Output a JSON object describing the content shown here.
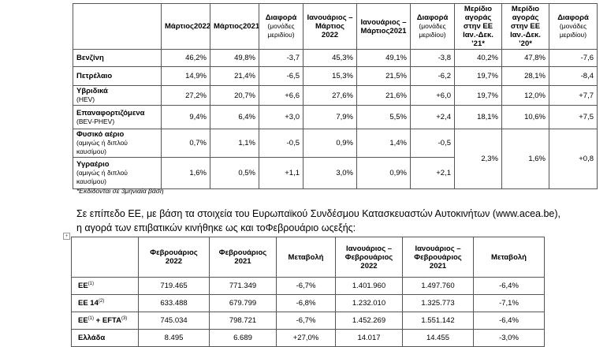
{
  "table1": {
    "header": [
      {
        "bold": "Μάρτιος2022"
      },
      {
        "bold": "Μάρτιος2021"
      },
      {
        "bold": "Διαφορά",
        "note": "(μονάδες μεριδίου)"
      },
      {
        "bold": "Ιανουάριος – Μάρτιος 2022"
      },
      {
        "bold": "Ιανουάριος – Μάρτιος2021"
      },
      {
        "bold": "Διαφορά",
        "note": "(μονάδες μεριδίου)"
      },
      {
        "bold": "Μερίδιο αγοράς στην ΕΕ Ιαν.-Δεκ. ’21*"
      },
      {
        "bold": "Μερίδιο αγοράς στην ΕΕ Ιαν.-Δεκ. ’20*"
      },
      {
        "bold": "Διαφορά",
        "note": "(μονάδες μεριδίου)"
      }
    ],
    "rows": [
      {
        "label": {
          "bold": "Βενζίνη"
        },
        "cells": [
          "46,2%",
          "49,8%",
          "-3,7",
          "45,3%",
          "49,1%",
          "-3,8",
          "40,2%",
          "47,8%",
          "-7,6"
        ]
      },
      {
        "label": {
          "bold": "Πετρέλαιο"
        },
        "cells": [
          "14,9%",
          "21,4%",
          "-6,5",
          "15,3%",
          "21,5%",
          "-6,2",
          "19,7%",
          "28,1%",
          "-8,4"
        ]
      },
      {
        "label": {
          "bold": "Υβριδικά",
          "note": "(HEV)"
        },
        "cells": [
          "27,2%",
          "20,7%",
          "+6,6",
          "27,6%",
          "21,6%",
          "+6,0",
          "19,7%",
          "12,0%",
          "+7,7"
        ]
      },
      {
        "label": {
          "bold": "Επαναφορτιζόμενα",
          "note": "(BEV-PHEV)"
        },
        "cells": [
          "9,4%",
          "6,4%",
          "+3,0",
          "7,9%",
          "5,5%",
          "+2,4",
          "18,1%",
          "10,6%",
          "+7,5"
        ]
      },
      {
        "label": {
          "bold": "Φυσικό αέριο",
          "note": "(αμιγώς ή διπλού καυσίμου)"
        },
        "cells": [
          "0,7%",
          "1,1%",
          "-0,5",
          "0,9%",
          "1,4%",
          "-0,5"
        ]
      },
      {
        "label": {
          "bold": "Υγραέριο",
          "note": "(αμιγώς ή διπλού καυσίμου)"
        },
        "cells": [
          "1,6%",
          "0,5%",
          "+1,1",
          "3,0%",
          "0,9%",
          "+2,1"
        ]
      }
    ],
    "merged": [
      "2,3%",
      "1,6%",
      "+0,8"
    ]
  },
  "footnote": "*Εκδίδονται σε 3μηνιαία βάση",
  "paragraph": "Σε επίπεδο ΕΕ, με βάση τα στοιχεία του Ευρωπαϊκού Συνδέσμου Κατασκευαστών Αυτοκινήτων (www.acea.be), η αγορά των επιβατικών κινήθηκε ως και τοΦεβρουάριο ωςεξής:",
  "table2": {
    "header": [
      "Φεβρουάριος 2022",
      "Φεβρουάριος 2021",
      "Μεταβολή",
      "Ιανουάριος – Φεβρουάριος 2022",
      "Ιανουάριος – Φεβρουάριος 2021",
      "Μεταβολή"
    ],
    "rows": [
      {
        "label": [
          {
            "text": "ΕΕ"
          },
          {
            "sup": "(1)"
          }
        ],
        "cells": [
          "719.465",
          "771.349",
          "-6,7%",
          "1.401.960",
          "1.497.760",
          "-6,4%"
        ]
      },
      {
        "label": [
          {
            "text": "ΕΕ 14"
          },
          {
            "sup": "(2)"
          }
        ],
        "cells": [
          "633.488",
          "679.799",
          "-6,8%",
          "1.232.010",
          "1.325.773",
          "-7,1%"
        ]
      },
      {
        "label": [
          {
            "text": "ΕΕ"
          },
          {
            "sup": "(1)"
          },
          {
            "text": " + EFTA"
          },
          {
            "sup": "(3)"
          }
        ],
        "cells": [
          "745.034",
          "798.721",
          "-6,7%",
          "1.452.269",
          "1.551.142",
          "-6,4%"
        ]
      },
      {
        "label": [
          {
            "text": "Ελλάδα"
          }
        ],
        "cells": [
          "8.495",
          "6.689",
          "+27,0%",
          "14.017",
          "14.455",
          "-3,0%"
        ]
      }
    ]
  }
}
